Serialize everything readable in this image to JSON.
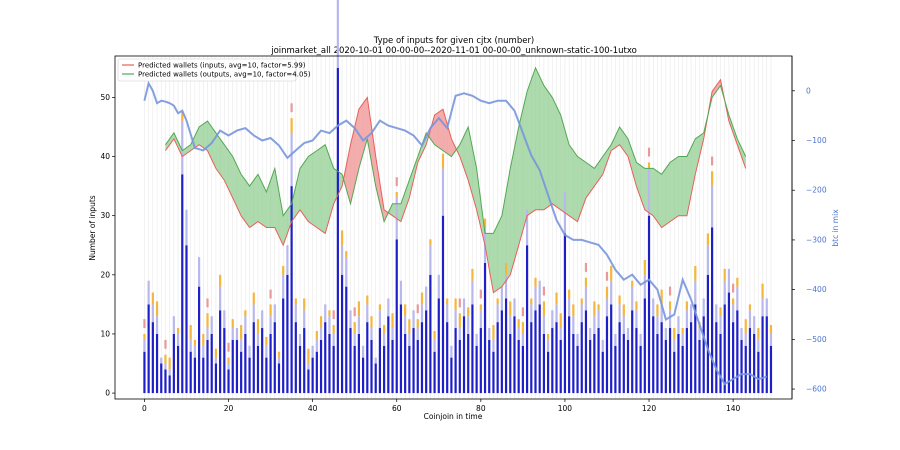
{
  "chart_data": {
    "type": "bar",
    "title": "Type of inputs for given cjtx (number)",
    "subtitle": "joinmarket_all 2020-10-01 00-00-00--2020-11-01 00-00-00_unknown-static-100-1utxo",
    "xlabel": "Coinjoin in time",
    "ylabel": "Number of inputs",
    "y2label": "btc in mix",
    "xlim": [
      -7,
      154
    ],
    "ylim": [
      -1,
      57
    ],
    "y2lim": [
      -620,
      70
    ],
    "xticks": [
      0,
      20,
      40,
      60,
      80,
      100,
      120,
      140
    ],
    "yticks": [
      0,
      10,
      20,
      30,
      40,
      50
    ],
    "y2ticks": [
      0,
      -100,
      -200,
      -300,
      -400,
      -500,
      -600
    ],
    "grid": "vertical lines at each coinjoin",
    "legend_position": "top-left",
    "legend": [
      {
        "label": "Predicted wallets (inputs, avg=10, factor=5.99)",
        "color": "#e8605a"
      },
      {
        "label": "Predicted wallets (outputs, avg=10, factor=4.05)",
        "color": "#52a852"
      }
    ],
    "colors": {
      "bars_main": "#1f1fc8",
      "bars_light": "#b8b8ee",
      "bars_orange": "#f4b63c",
      "bars_pink": "#e89a9a",
      "bars_brown": "#9a4a2a",
      "inputs_line": "#e8605a",
      "outputs_line": "#52a852",
      "fill_red": "#f08a8a",
      "fill_green": "#8ccc8c",
      "btc_line": "#7896dc"
    },
    "bar_values": [
      7,
      15,
      12,
      10,
      5,
      4,
      3,
      10,
      8,
      37,
      25,
      7,
      6,
      18,
      6,
      9,
      10,
      5,
      14,
      11,
      4,
      9,
      9,
      7,
      10,
      6,
      12,
      8,
      11,
      6,
      10,
      12,
      5,
      16,
      20,
      35,
      12,
      8,
      11,
      4,
      6,
      7,
      9,
      12,
      10,
      8,
      55,
      20,
      18,
      11,
      8,
      10,
      6,
      12,
      9,
      5,
      11,
      8,
      13,
      9,
      26,
      15,
      10,
      8,
      11,
      9,
      12,
      14,
      20,
      7,
      16,
      30,
      12,
      6,
      11,
      9,
      13,
      10,
      15,
      8,
      11,
      22,
      9,
      7,
      12,
      14,
      16,
      10,
      13,
      9,
      8,
      25,
      12,
      14,
      15,
      10,
      7,
      11,
      12,
      9,
      27,
      13,
      10,
      8,
      12,
      14,
      9,
      10,
      11,
      7,
      13,
      15,
      8,
      12,
      10,
      9,
      14,
      11,
      8,
      16,
      30,
      13,
      10,
      12,
      9,
      11,
      7,
      10,
      8,
      11,
      12,
      15,
      9,
      13,
      20,
      28,
      12,
      10,
      15,
      17,
      12,
      14,
      9,
      8,
      11,
      10,
      7,
      13,
      13,
      8
    ],
    "inputs_series": {
      "x": [
        5,
        7,
        9,
        11,
        13,
        15,
        17,
        19,
        21,
        23,
        25,
        27,
        29,
        31,
        33,
        35,
        37,
        39,
        41,
        43,
        45,
        47,
        49,
        51,
        53,
        55,
        57,
        59,
        61,
        63,
        65,
        67,
        69,
        71,
        73,
        75,
        77,
        79,
        81,
        83,
        85,
        87,
        89,
        91,
        93,
        95,
        97,
        99,
        101,
        103,
        105,
        107,
        109,
        111,
        113,
        115,
        117,
        119,
        121,
        123,
        125,
        127,
        129,
        131,
        133,
        135,
        137,
        139,
        141,
        143
      ],
      "y": [
        41,
        43,
        40,
        41,
        42,
        41,
        38,
        36,
        33,
        30,
        28,
        29,
        28,
        28,
        25,
        29,
        31,
        29,
        28,
        27,
        32,
        35,
        42,
        48,
        50,
        40,
        31,
        30,
        29,
        33,
        39,
        42,
        47,
        48,
        43,
        40,
        36,
        31,
        25,
        17,
        18,
        20,
        25,
        30,
        31,
        31,
        32,
        31,
        30,
        29,
        33,
        35,
        37,
        41,
        42,
        40,
        35,
        31,
        30,
        28,
        29,
        30,
        30,
        37,
        43,
        51,
        53,
        46,
        42,
        38
      ]
    },
    "outputs_series": {
      "x": [
        5,
        7,
        9,
        11,
        13,
        15,
        17,
        19,
        21,
        23,
        25,
        27,
        29,
        31,
        33,
        35,
        37,
        39,
        41,
        43,
        45,
        47,
        49,
        51,
        53,
        55,
        57,
        59,
        61,
        63,
        65,
        67,
        69,
        71,
        73,
        75,
        77,
        79,
        81,
        83,
        85,
        87,
        89,
        91,
        93,
        95,
        97,
        99,
        101,
        103,
        105,
        107,
        109,
        111,
        113,
        115,
        117,
        119,
        121,
        123,
        125,
        127,
        129,
        131,
        133,
        135,
        137,
        139,
        141,
        143
      ],
      "y": [
        42,
        44,
        41,
        42,
        45,
        46,
        44,
        42,
        40,
        37,
        35,
        37,
        34,
        38,
        30,
        32,
        38,
        40,
        41,
        42,
        38,
        37,
        32,
        38,
        43,
        35,
        29,
        32,
        32,
        36,
        40,
        44,
        42,
        41,
        40,
        42,
        45,
        38,
        27,
        27,
        30,
        38,
        45,
        51,
        55,
        52,
        50,
        47,
        42,
        40,
        39,
        38,
        40,
        42,
        45,
        43,
        39,
        38,
        38,
        37,
        39,
        40,
        40,
        43,
        44,
        50,
        52,
        47,
        43,
        40
      ]
    },
    "btc_in_mix": {
      "x": [
        0,
        1,
        2,
        3,
        4,
        5,
        6,
        7,
        8,
        9,
        10,
        12,
        14,
        16,
        18,
        20,
        22,
        24,
        26,
        28,
        30,
        32,
        34,
        36,
        38,
        40,
        42,
        44,
        46,
        48,
        50,
        52,
        54,
        56,
        58,
        60,
        62,
        64,
        66,
        68,
        70,
        72,
        74,
        76,
        78,
        80,
        82,
        84,
        86,
        88,
        90,
        92,
        94,
        96,
        98,
        100,
        102,
        104,
        106,
        108,
        110,
        112,
        114,
        116,
        118,
        120,
        122,
        124,
        126,
        128,
        130,
        132,
        134,
        136,
        138,
        140,
        142,
        144,
        146,
        148
      ],
      "y": [
        -20,
        15,
        0,
        -25,
        -20,
        -22,
        -25,
        -30,
        -45,
        -40,
        -60,
        -115,
        -120,
        -105,
        -80,
        -90,
        -80,
        -75,
        -90,
        -100,
        -95,
        -110,
        -135,
        -120,
        -105,
        -100,
        -80,
        -85,
        -70,
        -60,
        -75,
        -100,
        -85,
        -60,
        -70,
        -75,
        -80,
        -90,
        -110,
        -75,
        -55,
        -75,
        -10,
        -5,
        -10,
        -20,
        -25,
        -20,
        -20,
        -40,
        -85,
        -130,
        -160,
        -210,
        -260,
        -290,
        -300,
        -300,
        -305,
        -310,
        -330,
        -360,
        -380,
        -370,
        -390,
        -380,
        -400,
        -460,
        -450,
        -380,
        -420,
        -470,
        -520,
        -560,
        -590,
        -580,
        -570,
        -570,
        -580,
        -575
      ]
    }
  }
}
